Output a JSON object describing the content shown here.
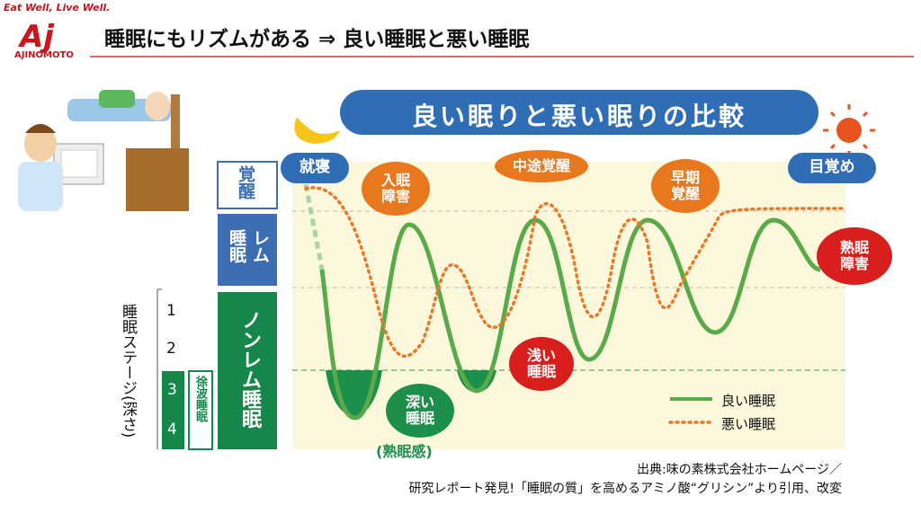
{
  "header": {
    "tagline": "Eat Well, Live Well.",
    "logo": "AJINOMOTO",
    "title": "睡眠にもリズムがある ⇒ 良い睡眠と悪い睡眠"
  },
  "diagram": {
    "title": "良い眠りと悪い眠りの比較",
    "bands": {
      "awake": "覚醒",
      "rem": "レム睡眠",
      "nonrem": "ノンレム睡眠"
    },
    "stage_label": "睡眠ステージ(深さ)",
    "stages": [
      "1",
      "2",
      "3",
      "4"
    ],
    "slow_wave": "徐波睡眠",
    "callouts": {
      "bedtime": "就寝",
      "wake": "目覚め",
      "onset_insomnia": "入眠障害",
      "mid_waking": "中途覚醒",
      "early_waking": "早期覚醒",
      "poor_sleep": "熟眠障害",
      "light_sleep": "浅い睡眠",
      "deep_sleep": "深い睡眠",
      "deep_feeling": "(熟眠感)"
    },
    "legend": {
      "good": "良い睡眠",
      "bad": "悪い睡眠"
    }
  },
  "source": [
    "出典:味の素株式会社ホームページ／",
    "研究レポート発見!「睡眠の質」を高めるアミノ酸“グリシン”より引用、改変"
  ]
}
